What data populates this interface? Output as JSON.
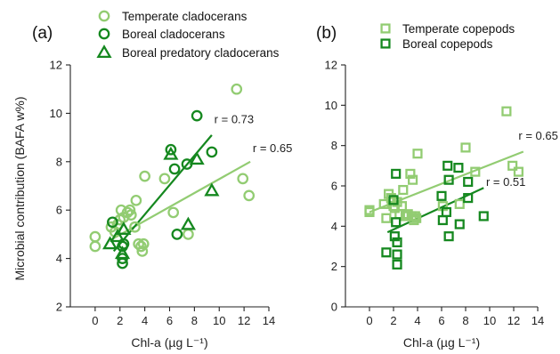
{
  "ylabel_shared": "Microbial contribution (BAFA w%)",
  "colors": {
    "light": "#92cc72",
    "dark": "#15881f"
  },
  "chart_data": [
    {
      "panel": "(a)",
      "type": "scatter",
      "xlabel": "Chl-a (µg L⁻¹)",
      "xlim": [
        -2,
        14
      ],
      "ylim": [
        2,
        12
      ],
      "xticks": [
        0,
        2,
        4,
        6,
        8,
        10,
        12,
        14
      ],
      "yticks": [
        2,
        4,
        6,
        8,
        10,
        12
      ],
      "legend_placement": "top",
      "series": [
        {
          "name": "Temperate cladocerans",
          "marker": "circle",
          "color": "light",
          "points": [
            [
              0.0,
              4.9
            ],
            [
              0.0,
              4.5
            ],
            [
              1.3,
              5.3
            ],
            [
              1.6,
              5.1
            ],
            [
              1.8,
              5.4
            ],
            [
              2.0,
              5.6
            ],
            [
              2.1,
              6.0
            ],
            [
              2.3,
              5.7
            ],
            [
              2.6,
              5.9
            ],
            [
              2.8,
              6.0
            ],
            [
              2.9,
              5.8
            ],
            [
              3.2,
              5.3
            ],
            [
              3.3,
              6.4
            ],
            [
              3.5,
              4.6
            ],
            [
              3.7,
              4.5
            ],
            [
              3.9,
              4.6
            ],
            [
              3.8,
              4.3
            ],
            [
              4.0,
              7.4
            ],
            [
              5.6,
              7.3
            ],
            [
              6.3,
              5.9
            ],
            [
              7.5,
              5.0
            ],
            [
              11.4,
              11.0
            ],
            [
              11.9,
              7.3
            ],
            [
              12.4,
              6.6
            ]
          ]
        },
        {
          "name": "Boreal cladocerans",
          "marker": "circle",
          "color": "dark",
          "points": [
            [
              1.4,
              5.5
            ],
            [
              2.2,
              3.8
            ],
            [
              2.2,
              4.0
            ],
            [
              2.2,
              4.5
            ],
            [
              2.3,
              4.6
            ],
            [
              6.1,
              8.5
            ],
            [
              6.4,
              7.7
            ],
            [
              6.6,
              5.0
            ],
            [
              7.4,
              7.9
            ],
            [
              8.2,
              9.9
            ],
            [
              9.4,
              8.4
            ]
          ]
        },
        {
          "name": "Boreal predatory cladocerans",
          "marker": "triangle",
          "color": "dark",
          "points": [
            [
              1.2,
              4.6
            ],
            [
              1.8,
              4.9
            ],
            [
              2.2,
              4.2
            ],
            [
              2.3,
              5.2
            ],
            [
              6.1,
              8.3
            ],
            [
              7.5,
              5.4
            ],
            [
              8.2,
              8.1
            ],
            [
              9.4,
              6.8
            ]
          ]
        }
      ],
      "fits": [
        {
          "color": "light",
          "x": [
            1.2,
            12.5
          ],
          "y": [
            4.75,
            8.0
          ],
          "label": "r = 0.65",
          "label_at": [
            12.7,
            8.4
          ]
        },
        {
          "color": "dark",
          "x": [
            1.5,
            9.4
          ],
          "y": [
            4.3,
            9.1
          ],
          "label": "r = 0.73",
          "label_at": [
            9.6,
            9.6
          ]
        }
      ]
    },
    {
      "panel": "(b)",
      "type": "scatter",
      "xlabel": "Chl-a (µg L⁻¹)",
      "xlim": [
        -2,
        14
      ],
      "ylim": [
        0,
        12
      ],
      "xticks": [
        0,
        2,
        4,
        6,
        8,
        10,
        12,
        14
      ],
      "yticks": [
        0,
        2,
        4,
        6,
        8,
        10,
        12
      ],
      "legend_placement": "top",
      "series": [
        {
          "name": "Temperate copepods",
          "marker": "square",
          "color": "light",
          "points": [
            [
              0.0,
              4.8
            ],
            [
              0.0,
              4.7
            ],
            [
              1.2,
              5.1
            ],
            [
              1.4,
              4.4
            ],
            [
              1.6,
              5.6
            ],
            [
              1.8,
              5.4
            ],
            [
              2.0,
              5.0
            ],
            [
              2.1,
              4.9
            ],
            [
              2.3,
              5.2
            ],
            [
              2.5,
              4.6
            ],
            [
              2.7,
              5.0
            ],
            [
              2.8,
              5.8
            ],
            [
              3.0,
              4.5
            ],
            [
              3.2,
              4.6
            ],
            [
              3.4,
              6.6
            ],
            [
              3.5,
              4.5
            ],
            [
              3.6,
              6.3
            ],
            [
              3.7,
              4.3
            ],
            [
              3.8,
              4.5
            ],
            [
              3.9,
              4.4
            ],
            [
              4.0,
              7.6
            ],
            [
              6.1,
              5.0
            ],
            [
              7.5,
              5.1
            ],
            [
              8.0,
              7.9
            ],
            [
              8.8,
              6.7
            ],
            [
              11.4,
              9.7
            ],
            [
              11.9,
              7.0
            ],
            [
              12.4,
              6.7
            ]
          ]
        },
        {
          "name": "Boreal copepods",
          "marker": "square",
          "color": "dark",
          "points": [
            [
              1.4,
              2.7
            ],
            [
              2.0,
              5.3
            ],
            [
              2.1,
              3.5
            ],
            [
              2.2,
              6.6
            ],
            [
              2.2,
              4.2
            ],
            [
              2.3,
              3.2
            ],
            [
              2.3,
              2.6
            ],
            [
              2.3,
              2.1
            ],
            [
              6.0,
              5.5
            ],
            [
              6.1,
              4.3
            ],
            [
              6.4,
              4.7
            ],
            [
              6.5,
              7.0
            ],
            [
              6.6,
              6.3
            ],
            [
              6.6,
              3.5
            ],
            [
              7.4,
              6.9
            ],
            [
              7.5,
              4.1
            ],
            [
              8.2,
              5.4
            ],
            [
              8.2,
              6.2
            ],
            [
              9.5,
              4.5
            ]
          ]
        }
      ],
      "fits": [
        {
          "color": "light",
          "x": [
            0.0,
            12.8
          ],
          "y": [
            4.7,
            7.7
          ],
          "label": "r = 0.65",
          "label_at": [
            12.4,
            8.3
          ]
        },
        {
          "color": "dark",
          "x": [
            1.5,
            9.5
          ],
          "y": [
            3.7,
            5.9
          ],
          "label": "r = 0.51",
          "label_at": [
            9.7,
            6.0
          ]
        }
      ]
    }
  ]
}
